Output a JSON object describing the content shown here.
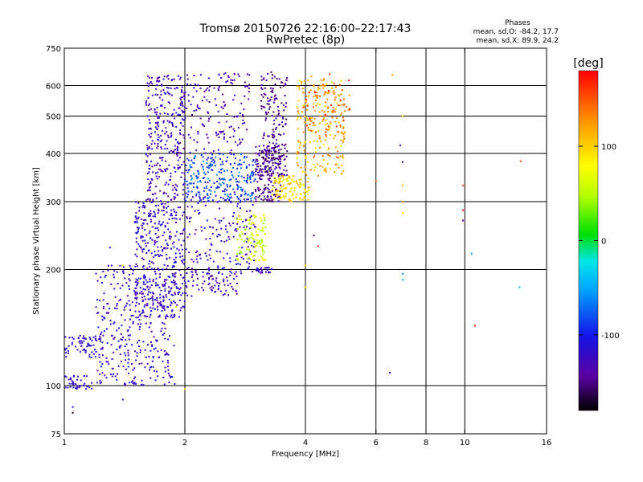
{
  "chart_data": {
    "type": "scatter",
    "title": "Tromsø 20150726 22:16:00–22:17:43",
    "subtitle": "RwPretec (8p)",
    "xlabel": "Frequency [MHz]",
    "ylabel": "Stationary phase Virtual Height [km]",
    "x_scale": "log",
    "y_scale": "log",
    "xlim": [
      1,
      16
    ],
    "ylim": [
      75,
      750
    ],
    "x_ticks": [
      1,
      2,
      4,
      6,
      8,
      10,
      16
    ],
    "x_tick_labels": [
      "1",
      "2",
      "4",
      "6",
      "8",
      "10",
      "16"
    ],
    "y_ticks": [
      75,
      100,
      200,
      300,
      400,
      500,
      600,
      750
    ],
    "y_tick_labels": [
      "75",
      "100",
      "200",
      "300",
      "400",
      "500",
      "600",
      "750"
    ],
    "x_gridlines": [
      2,
      4,
      6,
      8,
      10
    ],
    "y_gridlines": [
      100,
      200,
      300,
      400,
      500,
      600
    ],
    "annotation": {
      "heading": "Phases",
      "line1": "mean, sd,O: -84.2, 17.7",
      "line2": "mean, sd,X:  89.9, 24.2"
    },
    "colorbar": {
      "label": "[deg]",
      "min": -180,
      "max": 180,
      "ticks": [
        100,
        0,
        -100
      ],
      "tick_labels": [
        "100",
        "0",
        "-100"
      ]
    },
    "clusters": [
      {
        "f": [
          1.0,
          1.18
        ],
        "h": [
          98,
          106
        ],
        "phase": [
          -125,
          -110
        ],
        "count": 40
      },
      {
        "f": [
          1.0,
          1.25
        ],
        "h": [
          118,
          135
        ],
        "phase": [
          -125,
          -105
        ],
        "count": 70
      },
      {
        "f": [
          1.2,
          1.9
        ],
        "h": [
          100,
          205
        ],
        "phase": [
          -140,
          -95
        ],
        "count": 340
      },
      {
        "f": [
          1.5,
          2.0
        ],
        "h": [
          150,
          300
        ],
        "phase": [
          -145,
          -100
        ],
        "count": 380
      },
      {
        "f": [
          1.6,
          2.0
        ],
        "h": [
          300,
          640
        ],
        "phase": [
          -150,
          -105
        ],
        "count": 320
      },
      {
        "f": [
          2.0,
          2.7
        ],
        "h": [
          170,
          195
        ],
        "phase": [
          -150,
          -115
        ],
        "count": 70
      },
      {
        "f": [
          2.0,
          3.0
        ],
        "h": [
          195,
          320
        ],
        "phase": [
          -145,
          -100
        ],
        "count": 180
      },
      {
        "f": [
          2.0,
          3.0
        ],
        "h": [
          300,
          400
        ],
        "phase": [
          -115,
          -55
        ],
        "count": 260
      },
      {
        "f": [
          2.0,
          2.9
        ],
        "h": [
          400,
          650
        ],
        "phase": [
          -150,
          -110
        ],
        "count": 150
      },
      {
        "f": [
          3.0,
          3.5
        ],
        "h": [
          300,
          420
        ],
        "phase": [
          -165,
          -130
        ],
        "count": 180
      },
      {
        "f": [
          3.1,
          3.6
        ],
        "h": [
          350,
          650
        ],
        "phase": [
          -165,
          -130
        ],
        "count": 180
      },
      {
        "f": [
          3.0,
          3.3
        ],
        "h": [
          196,
          204
        ],
        "phase": [
          -140,
          -110
        ],
        "count": 25
      },
      {
        "f": [
          2.7,
          3.2
        ],
        "h": [
          210,
          280
        ],
        "phase": [
          35,
          80
        ],
        "count": 110
      },
      {
        "f": [
          3.3,
          4.1
        ],
        "h": [
          300,
          350
        ],
        "phase": [
          75,
          115
        ],
        "count": 120
      },
      {
        "f": [
          3.8,
          5.0
        ],
        "h": [
          350,
          620
        ],
        "phase": [
          85,
          145
        ],
        "count": 230
      },
      {
        "f": [
          4.0,
          5.2
        ],
        "h": [
          450,
          650
        ],
        "phase": [
          120,
          175
        ],
        "count": 60
      }
    ],
    "isolated_points": [
      {
        "f": 6.6,
        "h": 640,
        "phase": 120
      },
      {
        "f": 7.0,
        "h": 500,
        "phase": 100
      },
      {
        "f": 6.9,
        "h": 420,
        "phase": -140
      },
      {
        "f": 7.0,
        "h": 380,
        "phase": -160
      },
      {
        "f": 6.0,
        "h": 340,
        "phase": 150
      },
      {
        "f": 7.0,
        "h": 330,
        "phase": 110
      },
      {
        "f": 7.0,
        "h": 300,
        "phase": 130
      },
      {
        "f": 7.0,
        "h": 280,
        "phase": 90
      },
      {
        "f": 7.0,
        "h": 195,
        "phase": -60
      },
      {
        "f": 7.0,
        "h": 188,
        "phase": -45
      },
      {
        "f": 6.5,
        "h": 108,
        "phase": -130
      },
      {
        "f": 9.9,
        "h": 330,
        "phase": 160
      },
      {
        "f": 9.9,
        "h": 285,
        "phase": 175
      },
      {
        "f": 9.9,
        "h": 268,
        "phase": -140
      },
      {
        "f": 10.4,
        "h": 220,
        "phase": -55
      },
      {
        "f": 10.6,
        "h": 143,
        "phase": 170
      },
      {
        "f": 13.8,
        "h": 382,
        "phase": 150
      },
      {
        "f": 13.7,
        "h": 180,
        "phase": -45
      },
      {
        "f": 4.2,
        "h": 245,
        "phase": -150
      },
      {
        "f": 4.3,
        "h": 230,
        "phase": 170
      },
      {
        "f": 4.0,
        "h": 205,
        "phase": 110
      },
      {
        "f": 4.0,
        "h": 180,
        "phase": 100
      },
      {
        "f": 1.05,
        "h": 85,
        "phase": -165
      },
      {
        "f": 1.05,
        "h": 88,
        "phase": -100
      },
      {
        "f": 1.4,
        "h": 92,
        "phase": -120
      },
      {
        "f": 2.0,
        "h": 98,
        "phase": 100
      },
      {
        "f": 1.9,
        "h": 160,
        "phase": 60
      },
      {
        "f": 1.3,
        "h": 228,
        "phase": -115
      },
      {
        "f": 1.4,
        "h": 205,
        "phase": 50
      }
    ]
  }
}
